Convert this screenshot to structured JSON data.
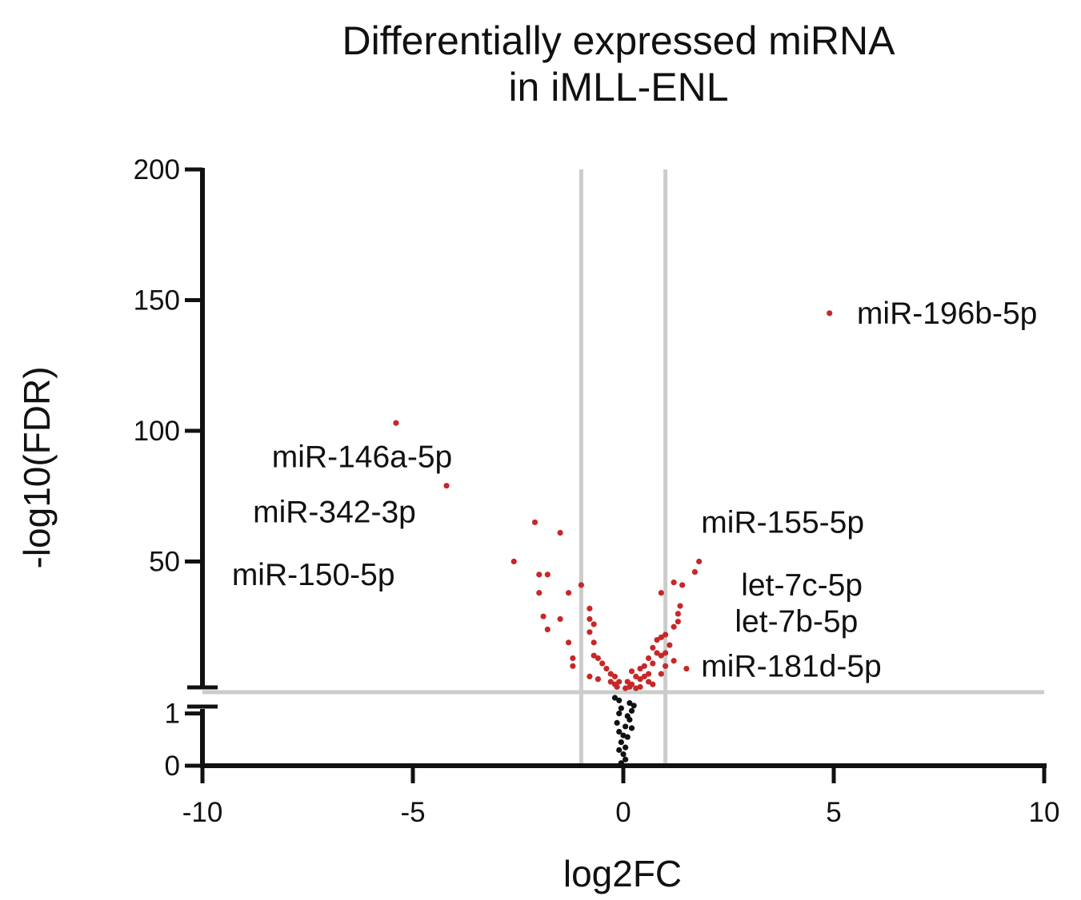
{
  "chart_data": {
    "type": "scatter",
    "title": [
      "Differentially expressed miRNA",
      "in iMLL-ENL"
    ],
    "xlabel": "log2FC",
    "ylabel": "-log10(FDR)",
    "xlim": [
      -10,
      10
    ],
    "x_ticks": [
      "-10",
      "-5",
      "0",
      "5",
      "10"
    ],
    "x_tick_values": [
      -10,
      -5,
      0,
      5,
      10
    ],
    "y_axis_broken": true,
    "y_lower_range": [
      0,
      1.3
    ],
    "y_lower_ticks": [
      "0",
      "1"
    ],
    "y_lower_tick_values": [
      0,
      1
    ],
    "y_upper_range": [
      0,
      200
    ],
    "y_upper_ticks": [
      "50",
      "100",
      "150",
      "200"
    ],
    "y_upper_tick_values": [
      50,
      100,
      150,
      200
    ],
    "thresholds": {
      "log2fc": [
        -1,
        1
      ],
      "neg_log10_fdr": 1.3
    },
    "grid": false,
    "colors": {
      "significant": "#c62828",
      "not_significant": "#111111",
      "threshold_line": "#cccccc",
      "axis": "#111111"
    },
    "series": [
      {
        "significance": "significant",
        "points": [
          [
            4.9,
            145
          ],
          [
            -5.4,
            103
          ],
          [
            -4.2,
            79
          ],
          [
            -2.1,
            65
          ],
          [
            -1.5,
            61
          ],
          [
            1.8,
            50
          ],
          [
            -2.6,
            50
          ],
          [
            1.7,
            46
          ],
          [
            -2.0,
            45
          ],
          [
            -1.8,
            45
          ],
          [
            1.2,
            42
          ],
          [
            -1.0,
            41
          ],
          [
            1.4,
            41
          ],
          [
            0.9,
            38
          ],
          [
            -2.0,
            38
          ],
          [
            -1.3,
            38
          ],
          [
            1.35,
            33
          ],
          [
            -0.8,
            32
          ],
          [
            1.3,
            30
          ],
          [
            -1.9,
            29
          ],
          [
            -0.8,
            28
          ],
          [
            -1.5,
            28
          ],
          [
            1.3,
            27
          ],
          [
            -0.7,
            26
          ],
          [
            1.2,
            25
          ],
          [
            -1.8,
            24
          ],
          [
            -0.8,
            23
          ],
          [
            1.0,
            22
          ],
          [
            0.9,
            21
          ],
          [
            0.8,
            20
          ],
          [
            -1.3,
            19
          ],
          [
            -0.7,
            19
          ],
          [
            1.1,
            18
          ],
          [
            0.7,
            17
          ],
          [
            0.8,
            15
          ],
          [
            1.0,
            15
          ],
          [
            0.9,
            14
          ],
          [
            -0.7,
            14
          ],
          [
            -1.2,
            13
          ],
          [
            0.6,
            13
          ],
          [
            -0.6,
            13
          ],
          [
            1.2,
            12
          ],
          [
            0.7,
            11
          ],
          [
            -0.5,
            11
          ],
          [
            -1.2,
            10
          ],
          [
            0.5,
            10
          ],
          [
            1.0,
            10
          ],
          [
            -0.4,
            9
          ],
          [
            0.4,
            9
          ],
          [
            1.5,
            9
          ],
          [
            0.2,
            8
          ],
          [
            -0.3,
            7
          ],
          [
            0.6,
            7
          ],
          [
            0.9,
            7
          ],
          [
            -0.8,
            6
          ],
          [
            -0.2,
            6
          ],
          [
            0.3,
            6
          ],
          [
            0.5,
            6
          ],
          [
            -0.6,
            5
          ],
          [
            0.4,
            5
          ],
          [
            -0.1,
            4
          ],
          [
            0.1,
            4
          ],
          [
            -0.3,
            4
          ],
          [
            0.6,
            4
          ],
          [
            0.2,
            3
          ],
          [
            -0.2,
            3
          ],
          [
            0.7,
            3
          ],
          [
            0.15,
            2
          ],
          [
            -0.15,
            2
          ],
          [
            0.4,
            2
          ],
          [
            0.05,
            1.5
          ],
          [
            0.3,
            1.5
          ]
        ]
      },
      {
        "significance": "not_significant",
        "points": [
          [
            -0.2,
            1.3
          ],
          [
            -0.1,
            1.25
          ],
          [
            0.15,
            1.2
          ],
          [
            0.25,
            1.15
          ],
          [
            -0.05,
            1.1
          ],
          [
            0.2,
            1.05
          ],
          [
            -0.1,
            1.0
          ],
          [
            0.1,
            0.95
          ],
          [
            0.15,
            0.88
          ],
          [
            -0.15,
            0.82
          ],
          [
            0.05,
            0.75
          ],
          [
            0.2,
            0.72
          ],
          [
            -0.1,
            0.65
          ],
          [
            0.0,
            0.58
          ],
          [
            0.1,
            0.55
          ],
          [
            -0.05,
            0.45
          ],
          [
            0.05,
            0.35
          ],
          [
            -0.1,
            0.3
          ],
          [
            0.0,
            0.22
          ],
          [
            0.05,
            0.12
          ],
          [
            -0.05,
            0.05
          ]
        ]
      }
    ],
    "annotations": [
      {
        "text": "miR-196b-5p",
        "x": 5.55,
        "y": 145
      },
      {
        "text": "miR-146a-5p",
        "x": -8.35,
        "y": 90
      },
      {
        "text": "miR-342-3p",
        "x": -8.8,
        "y": 69
      },
      {
        "text": "miR-150-5p",
        "x": -9.3,
        "y": 45
      },
      {
        "text": "miR-155-5p",
        "x": 1.85,
        "y": 65
      },
      {
        "text": "let-7c-5p",
        "x": 2.8,
        "y": 41
      },
      {
        "text": "let-7b-5p",
        "x": 2.65,
        "y": 27
      },
      {
        "text": "miR-181d-5p",
        "x": 1.85,
        "y": 10
      }
    ]
  }
}
